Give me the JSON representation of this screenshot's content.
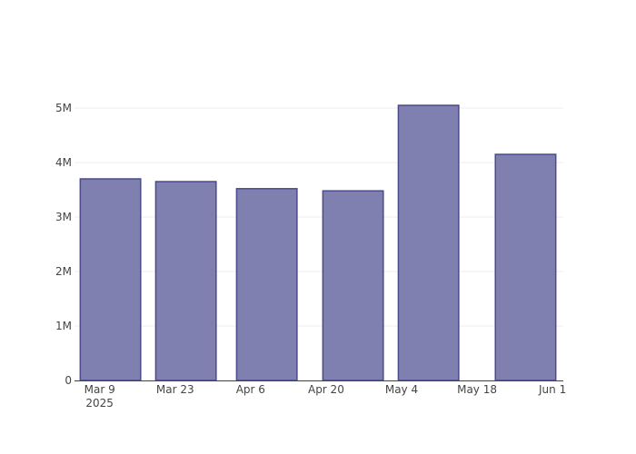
{
  "chart_data": {
    "type": "bar",
    "x": [
      "2025-03-11",
      "2025-03-25",
      "2025-04-09",
      "2025-04-25",
      "2025-05-09",
      "2025-05-27"
    ],
    "values": [
      3700000,
      3650000,
      3520000,
      3480000,
      5050000,
      4150000
    ],
    "color": "#7f7fb0",
    "edge_color": "#4a4a8c",
    "xlim": [
      "2025-03-04T08:00",
      "2025-06-03"
    ],
    "xticks": [
      {
        "value": "2025-03-09",
        "label": "Mar 9\n2025"
      },
      {
        "value": "2025-03-23",
        "label": "Mar 23"
      },
      {
        "value": "2025-04-06",
        "label": "Apr 6"
      },
      {
        "value": "2025-04-20",
        "label": "Apr 20"
      },
      {
        "value": "2025-05-04",
        "label": "May 4"
      },
      {
        "value": "2025-05-18",
        "label": "May 18"
      },
      {
        "value": "2025-06-01",
        "label": "Jun 1"
      }
    ],
    "ylim": [
      0,
      5300000
    ],
    "yticks": [
      0,
      {
        "value": 1000000,
        "label": "1M"
      },
      {
        "value": 2000000,
        "label": "2M"
      },
      {
        "value": 3000000,
        "label": "3M"
      },
      {
        "value": 4000000,
        "label": "4M"
      },
      {
        "value": 5000000,
        "label": "5M"
      }
    ],
    "grid": true
  }
}
